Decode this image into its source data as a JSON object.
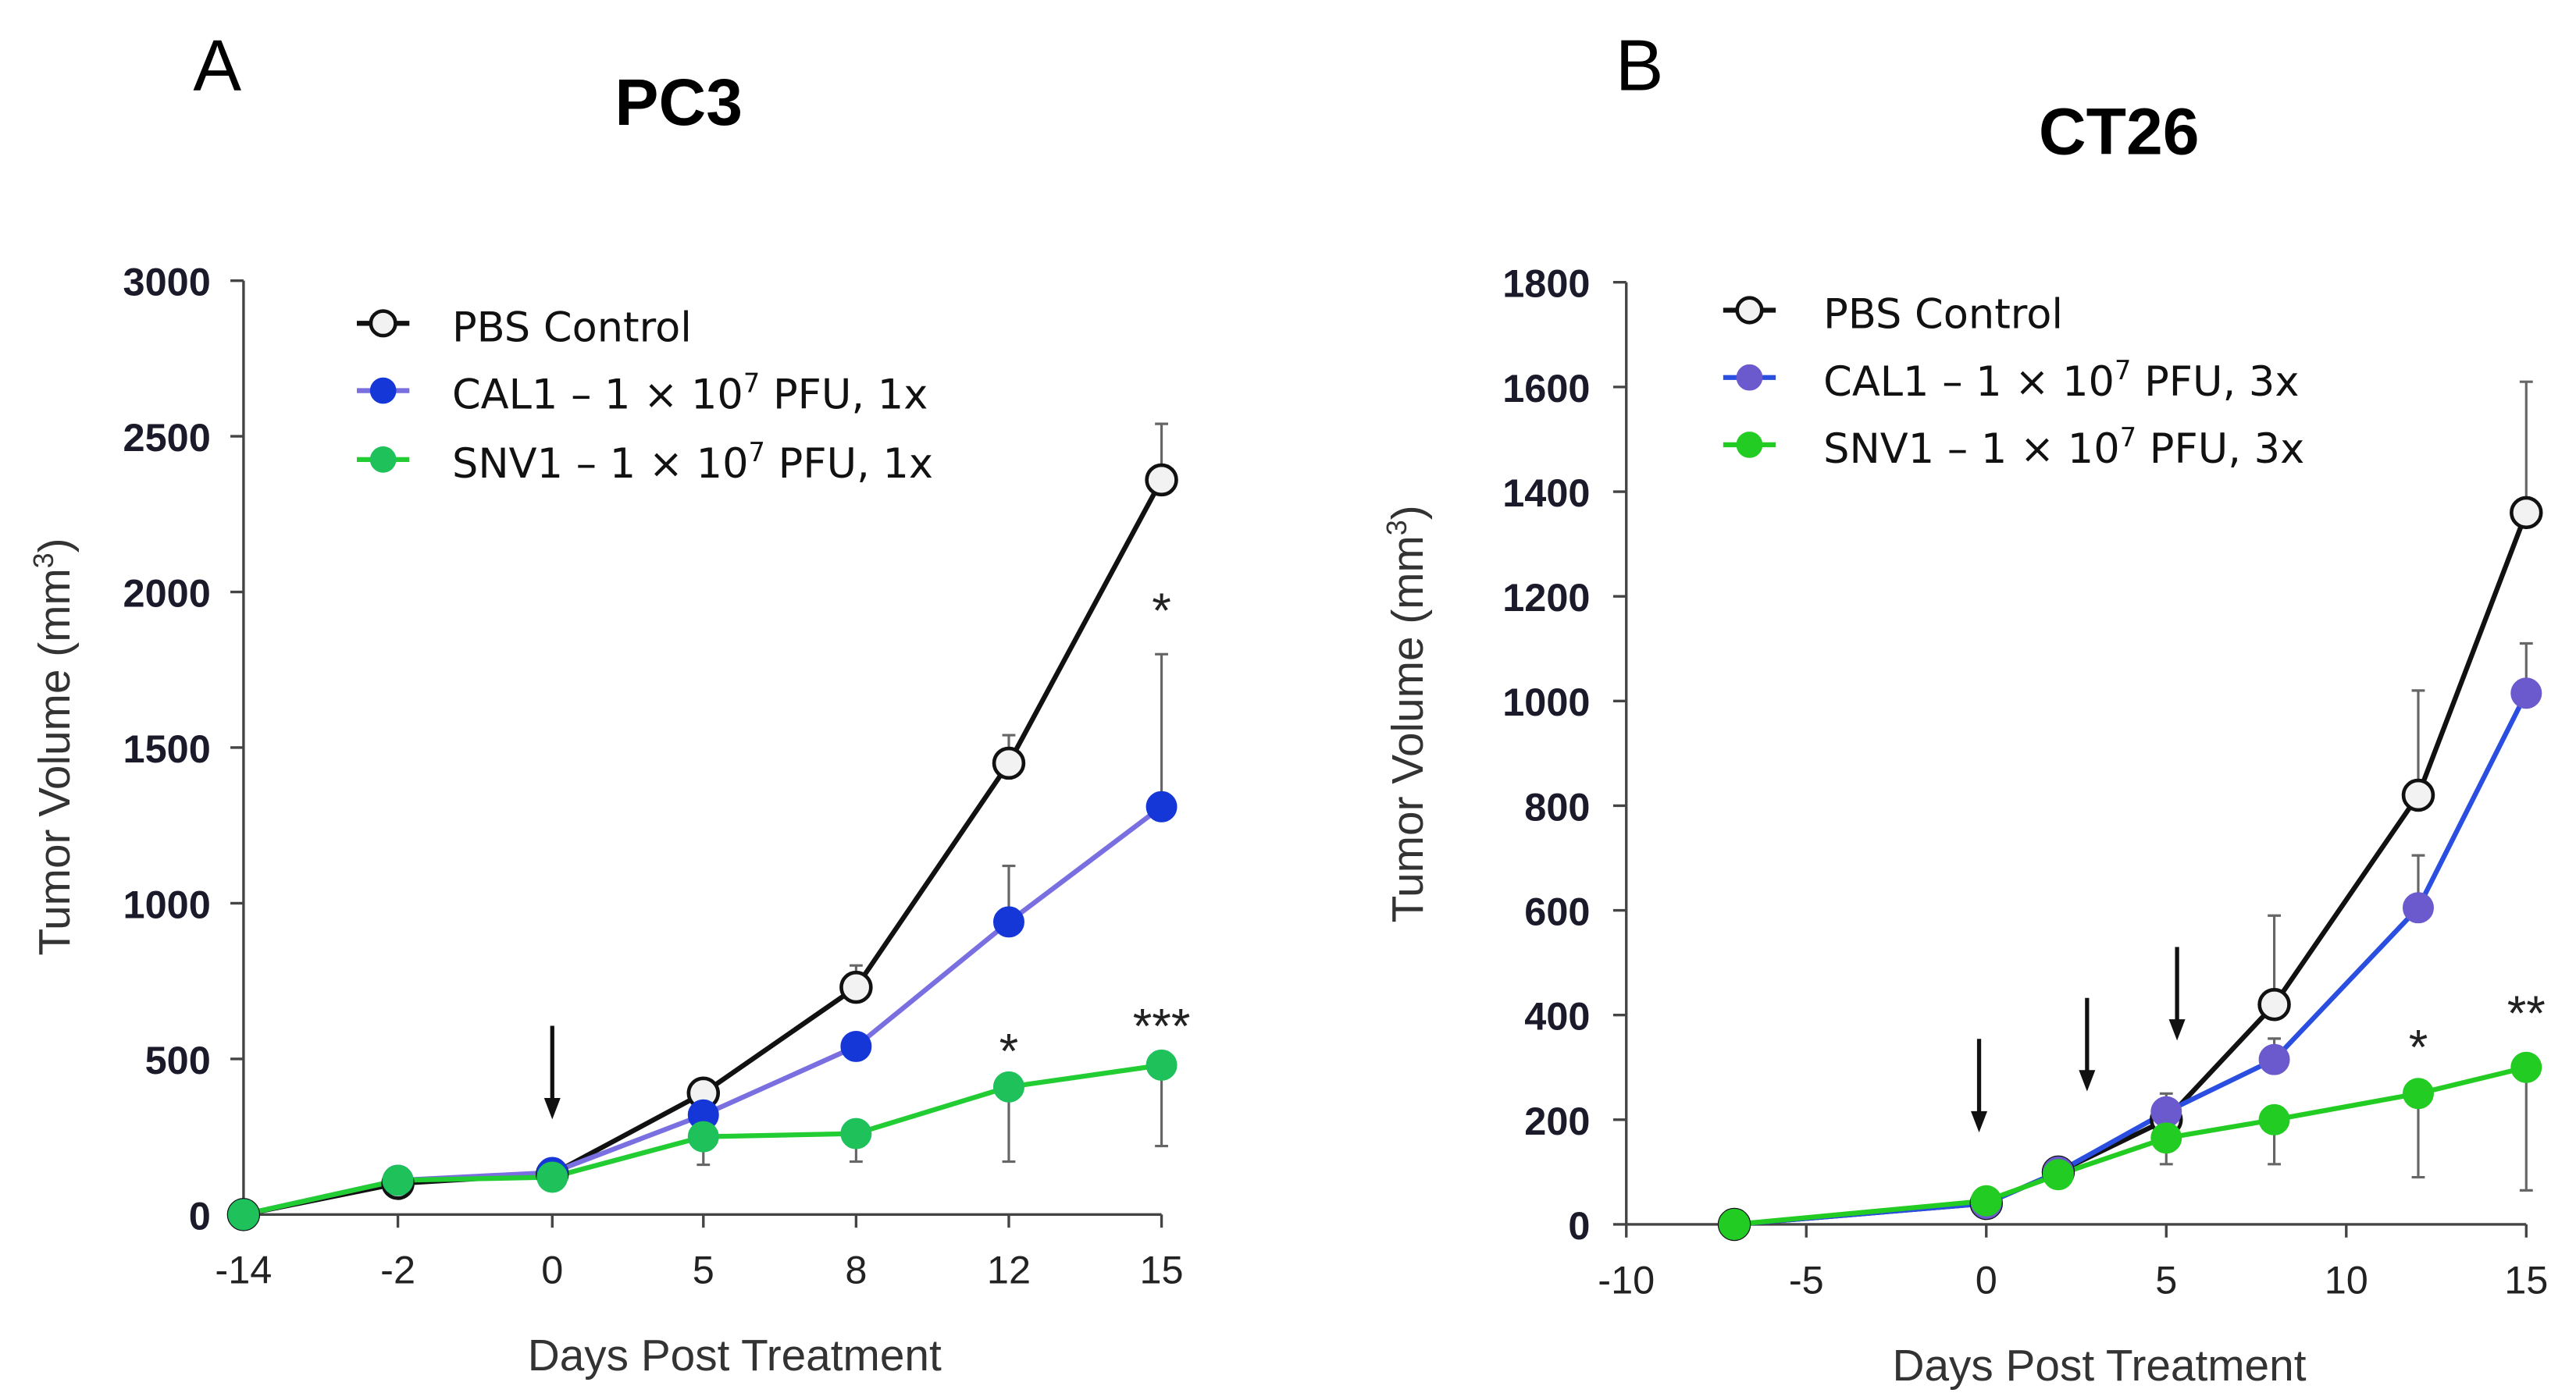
{
  "chart_data": [
    {
      "panel_label": "A",
      "type": "line",
      "title": "PC3",
      "xlabel": "Days Post Treatment",
      "ylabel": "Tumor Volume (mm",
      "ylabel_sup": "3",
      "ylabel_end": ")",
      "x_is_categorical": true,
      "x": [
        -14,
        -2,
        0,
        5,
        8,
        12,
        15
      ],
      "xticks": [
        "-14",
        "-2",
        "0",
        "5",
        "8",
        "12",
        "15"
      ],
      "ylim": [
        0,
        3000
      ],
      "yticks": [
        "0",
        "500",
        "1000",
        "1500",
        "2000",
        "2500",
        "3000"
      ],
      "series": [
        {
          "name": "PBS Control",
          "legend_main": "PBS Control",
          "legend_sup": "",
          "legend_end": "",
          "marker": "open-circle",
          "line_color": "#111111",
          "marker_color": "#f2f2f2",
          "values": [
            0,
            100,
            130,
            390,
            730,
            1450,
            2360
          ],
          "error_upper": [
            null,
            null,
            null,
            null,
            800,
            1540,
            2540
          ]
        },
        {
          "name": "CAL1 – 1 × 10^7 PFU, 1x",
          "legend_main": "CAL1 – 1 × 10",
          "legend_sup": "7",
          "legend_end": " PFU, 1x",
          "marker": "filled-circle",
          "line_color": "#7a6fe0",
          "marker_color": "#1637d8",
          "values": [
            0,
            110,
            135,
            320,
            540,
            940,
            1310
          ],
          "error_upper": [
            null,
            null,
            null,
            null,
            null,
            1120,
            1800
          ]
        },
        {
          "name": "SNV1 – 1 × 10^7 PFU, 1x",
          "legend_main": "SNV1 – 1 × 10",
          "legend_sup": "7",
          "legend_end": " PFU, 1x",
          "marker": "filled-circle",
          "line_color": "#22cc33",
          "marker_color": "#1ec15a",
          "values": [
            0,
            110,
            120,
            250,
            260,
            410,
            480
          ],
          "error_lower": [
            null,
            null,
            null,
            160,
            170,
            170,
            220
          ]
        }
      ],
      "treatment_arrows_x": [
        0
      ],
      "annotations": [
        {
          "text": "*",
          "x": 15,
          "y": 1960
        },
        {
          "text": "*",
          "x": 12,
          "y": 545
        },
        {
          "text": "***",
          "x": 15,
          "y": 625
        }
      ]
    },
    {
      "panel_label": "B",
      "type": "line",
      "title": "CT26",
      "xlabel": "Days Post Treatment",
      "ylabel": "Tumor Volume (mm",
      "ylabel_sup": "3",
      "ylabel_end": ")",
      "x_is_categorical": false,
      "x": [
        -7,
        0,
        2,
        5,
        8,
        12,
        15
      ],
      "xlim": [
        -10,
        15
      ],
      "xticks": [
        "-10",
        "-5",
        "0",
        "5",
        "10",
        "15"
      ],
      "ylim": [
        0,
        1800
      ],
      "yticks": [
        "0",
        "200",
        "400",
        "600",
        "800",
        "1000",
        "1200",
        "1400",
        "1600",
        "1800"
      ],
      "series": [
        {
          "name": "PBS Control",
          "legend_main": "PBS Control",
          "legend_sup": "",
          "legend_end": "",
          "marker": "open-circle",
          "line_color": "#111111",
          "marker_color": "#f2f2f2",
          "values": [
            0,
            40,
            100,
            200,
            420,
            820,
            1360
          ],
          "error_upper": [
            null,
            null,
            null,
            250,
            590,
            1020,
            1610
          ]
        },
        {
          "name": "CAL1 – 1 × 10^7 PFU, 3x",
          "legend_main": "CAL1 – 1 × 10",
          "legend_sup": "7",
          "legend_end": " PFU, 3x",
          "marker": "filled-circle",
          "line_color": "#2a4ee0",
          "marker_color": "#6a5acd",
          "values": [
            0,
            40,
            100,
            215,
            315,
            605,
            1015
          ],
          "error_upper": [
            null,
            null,
            null,
            null,
            355,
            705,
            1110
          ]
        },
        {
          "name": "SNV1 – 1 × 10^7 PFU, 3x",
          "legend_main": "SNV1 – 1 × 10",
          "legend_sup": "7",
          "legend_end": " PFU, 3x",
          "marker": "filled-circle",
          "line_color": "#22cc22",
          "marker_color": "#22cc22",
          "values": [
            0,
            45,
            95,
            165,
            200,
            250,
            300
          ],
          "error_lower": [
            null,
            null,
            null,
            115,
            115,
            90,
            65
          ]
        }
      ],
      "treatment_arrows_x": [
        -0.2,
        2.8,
        5.3
      ],
      "annotations": [
        {
          "text": "*",
          "x": 12,
          "y": 350
        },
        {
          "text": "**",
          "x": 15,
          "y": 415
        }
      ]
    }
  ]
}
